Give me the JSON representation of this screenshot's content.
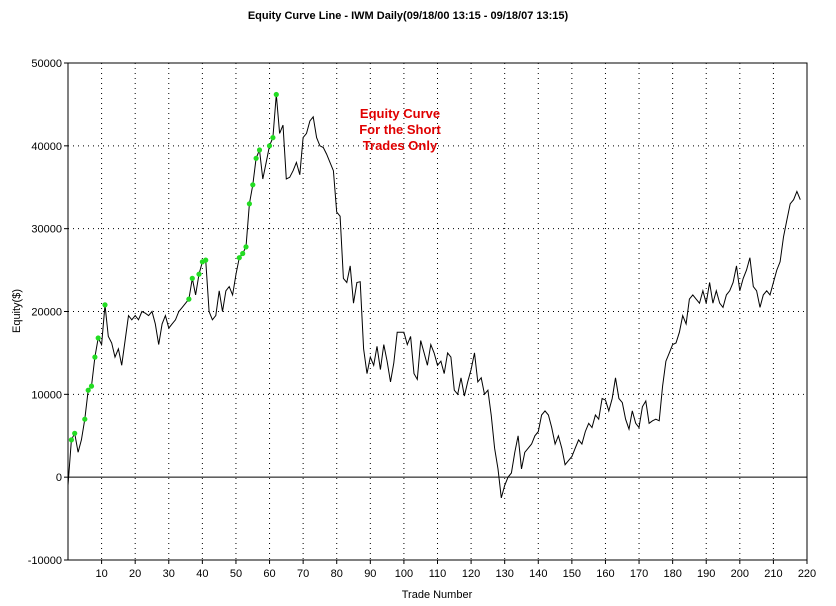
{
  "chart_data": {
    "type": "line",
    "title": "Equity Curve Line - IWM Daily(09/18/00 13:15 - 09/18/07 13:15)",
    "xlabel": "Trade Number",
    "ylabel": "Equity($)",
    "xlim": [
      0,
      220
    ],
    "ylim": [
      -10000,
      50000
    ],
    "x_ticks": [
      10,
      20,
      30,
      40,
      50,
      60,
      70,
      80,
      90,
      100,
      110,
      120,
      130,
      140,
      150,
      160,
      170,
      180,
      190,
      200,
      210,
      220
    ],
    "y_ticks": [
      -10000,
      0,
      10000,
      20000,
      30000,
      40000,
      50000
    ],
    "grid": true,
    "annotation": [
      "Equity Curve",
      "For the Short",
      "Trades Only"
    ],
    "colors": {
      "line": "#000000",
      "new_high_marker": "#22dd22",
      "annotation": "#e00000",
      "grid": "#000000"
    },
    "series": [
      {
        "values": [
          [
            0,
            -1000
          ],
          [
            1,
            4500
          ],
          [
            2,
            5300
          ],
          [
            3,
            3000
          ],
          [
            4,
            4500
          ],
          [
            5,
            7000
          ],
          [
            6,
            10500
          ],
          [
            7,
            11000
          ],
          [
            8,
            14500
          ],
          [
            9,
            16800
          ],
          [
            10,
            16000
          ],
          [
            11,
            20800
          ],
          [
            12,
            17000
          ],
          [
            13,
            16200
          ],
          [
            14,
            14500
          ],
          [
            15,
            15500
          ],
          [
            16,
            13500
          ],
          [
            17,
            16500
          ],
          [
            18,
            19500
          ],
          [
            19,
            19000
          ],
          [
            20,
            19500
          ],
          [
            21,
            19000
          ],
          [
            22,
            20000
          ],
          [
            23,
            19800
          ],
          [
            24,
            19500
          ],
          [
            25,
            20000
          ],
          [
            26,
            18500
          ],
          [
            27,
            16000
          ],
          [
            28,
            18500
          ],
          [
            29,
            19500
          ],
          [
            30,
            18000
          ],
          [
            31,
            18500
          ],
          [
            32,
            19000
          ],
          [
            33,
            20000
          ],
          [
            34,
            20500
          ],
          [
            35,
            21000
          ],
          [
            36,
            21500
          ],
          [
            37,
            24000
          ],
          [
            38,
            22000
          ],
          [
            39,
            24500
          ],
          [
            40,
            26000
          ],
          [
            41,
            26200
          ],
          [
            42,
            20000
          ],
          [
            43,
            19000
          ],
          [
            44,
            19500
          ],
          [
            45,
            22500
          ],
          [
            46,
            20000
          ],
          [
            47,
            22500
          ],
          [
            48,
            23000
          ],
          [
            49,
            22000
          ],
          [
            50,
            24500
          ],
          [
            51,
            26500
          ],
          [
            52,
            27000
          ],
          [
            53,
            27800
          ],
          [
            54,
            33000
          ],
          [
            55,
            35300
          ],
          [
            56,
            38500
          ],
          [
            57,
            39500
          ],
          [
            58,
            36000
          ],
          [
            59,
            38000
          ],
          [
            60,
            40000
          ],
          [
            61,
            41000
          ],
          [
            62,
            46200
          ],
          [
            63,
            41500
          ],
          [
            64,
            42500
          ],
          [
            65,
            36000
          ],
          [
            66,
            36200
          ],
          [
            67,
            37000
          ],
          [
            68,
            38000
          ],
          [
            69,
            36500
          ],
          [
            70,
            41000
          ],
          [
            71,
            41500
          ],
          [
            72,
            43000
          ],
          [
            73,
            43500
          ],
          [
            74,
            41000
          ],
          [
            75,
            40000
          ],
          [
            76,
            39800
          ],
          [
            77,
            39000
          ],
          [
            78,
            38000
          ],
          [
            79,
            37000
          ],
          [
            80,
            32000
          ],
          [
            81,
            31500
          ],
          [
            82,
            24000
          ],
          [
            83,
            23500
          ],
          [
            84,
            25500
          ],
          [
            85,
            21000
          ],
          [
            86,
            23500
          ],
          [
            87,
            23600
          ],
          [
            88,
            15500
          ],
          [
            89,
            12500
          ],
          [
            90,
            14500
          ],
          [
            91,
            13500
          ],
          [
            92,
            15800
          ],
          [
            93,
            13000
          ],
          [
            94,
            16000
          ],
          [
            95,
            14000
          ],
          [
            96,
            11500
          ],
          [
            97,
            13800
          ],
          [
            98,
            17500
          ],
          [
            99,
            17500
          ],
          [
            100,
            17500
          ],
          [
            101,
            16000
          ],
          [
            102,
            17000
          ],
          [
            103,
            12500
          ],
          [
            104,
            11800
          ],
          [
            105,
            16500
          ],
          [
            106,
            15000
          ],
          [
            107,
            13500
          ],
          [
            108,
            16000
          ],
          [
            109,
            15000
          ],
          [
            110,
            13500
          ],
          [
            111,
            14000
          ],
          [
            112,
            12500
          ],
          [
            113,
            15000
          ],
          [
            114,
            14500
          ],
          [
            115,
            10500
          ],
          [
            116,
            10000
          ],
          [
            117,
            12000
          ],
          [
            118,
            9800
          ],
          [
            119,
            11500
          ],
          [
            120,
            13000
          ],
          [
            121,
            15000
          ],
          [
            122,
            11500
          ],
          [
            123,
            12000
          ],
          [
            124,
            10000
          ],
          [
            125,
            10500
          ],
          [
            126,
            7500
          ],
          [
            127,
            3500
          ],
          [
            128,
            1000
          ],
          [
            129,
            -2500
          ],
          [
            130,
            -1000
          ],
          [
            131,
            0
          ],
          [
            132,
            500
          ],
          [
            133,
            3000
          ],
          [
            134,
            5000
          ],
          [
            135,
            1000
          ],
          [
            136,
            3000
          ],
          [
            137,
            3500
          ],
          [
            138,
            4000
          ],
          [
            139,
            5000
          ],
          [
            140,
            5500
          ],
          [
            141,
            7500
          ],
          [
            142,
            8000
          ],
          [
            143,
            7500
          ],
          [
            144,
            6000
          ],
          [
            145,
            4000
          ],
          [
            146,
            5000
          ],
          [
            147,
            3500
          ],
          [
            148,
            1500
          ],
          [
            149,
            2000
          ],
          [
            150,
            2500
          ],
          [
            151,
            3500
          ],
          [
            152,
            4500
          ],
          [
            153,
            4000
          ],
          [
            154,
            5500
          ],
          [
            155,
            6500
          ],
          [
            156,
            6000
          ],
          [
            157,
            7500
          ],
          [
            158,
            7000
          ],
          [
            159,
            9500
          ],
          [
            160,
            9300
          ],
          [
            161,
            8000
          ],
          [
            162,
            9500
          ],
          [
            163,
            12000
          ],
          [
            164,
            9500
          ],
          [
            165,
            9000
          ],
          [
            166,
            7000
          ],
          [
            167,
            5800
          ],
          [
            168,
            8000
          ],
          [
            169,
            6500
          ],
          [
            170,
            6000
          ],
          [
            171,
            8500
          ],
          [
            172,
            9200
          ],
          [
            173,
            6500
          ],
          [
            174,
            6800
          ],
          [
            175,
            7000
          ],
          [
            176,
            6800
          ],
          [
            177,
            11000
          ],
          [
            178,
            14000
          ],
          [
            179,
            15000
          ],
          [
            180,
            16000
          ],
          [
            181,
            16200
          ],
          [
            182,
            17500
          ],
          [
            183,
            19500
          ],
          [
            184,
            18500
          ],
          [
            185,
            21500
          ],
          [
            186,
            22000
          ],
          [
            187,
            21500
          ],
          [
            188,
            21000
          ],
          [
            189,
            22500
          ],
          [
            190,
            21000
          ],
          [
            191,
            23500
          ],
          [
            192,
            21000
          ],
          [
            193,
            22500
          ],
          [
            194,
            21000
          ],
          [
            195,
            20500
          ],
          [
            196,
            22000
          ],
          [
            197,
            22500
          ],
          [
            198,
            23500
          ],
          [
            199,
            25500
          ],
          [
            200,
            22500
          ],
          [
            201,
            24000
          ],
          [
            202,
            25000
          ],
          [
            203,
            26500
          ],
          [
            204,
            23000
          ],
          [
            205,
            22500
          ],
          [
            206,
            20500
          ],
          [
            207,
            22000
          ],
          [
            208,
            22500
          ],
          [
            209,
            22000
          ],
          [
            210,
            23500
          ],
          [
            211,
            25000
          ],
          [
            212,
            26000
          ],
          [
            213,
            29000
          ],
          [
            214,
            31000
          ],
          [
            215,
            33000
          ],
          [
            216,
            33500
          ],
          [
            217,
            34500
          ],
          [
            218,
            33500
          ]
        ]
      }
    ],
    "new_high_markers": [
      [
        1,
        4500
      ],
      [
        2,
        5300
      ],
      [
        5,
        7000
      ],
      [
        6,
        10500
      ],
      [
        7,
        11000
      ],
      [
        8,
        14500
      ],
      [
        9,
        16800
      ],
      [
        11,
        20800
      ],
      [
        36,
        21500
      ],
      [
        37,
        24000
      ],
      [
        39,
        24500
      ],
      [
        40,
        26000
      ],
      [
        41,
        26200
      ],
      [
        51,
        26500
      ],
      [
        52,
        27000
      ],
      [
        53,
        27800
      ],
      [
        54,
        33000
      ],
      [
        55,
        35300
      ],
      [
        56,
        38500
      ],
      [
        57,
        39500
      ],
      [
        60,
        40000
      ],
      [
        61,
        41000
      ],
      [
        62,
        46200
      ]
    ]
  }
}
